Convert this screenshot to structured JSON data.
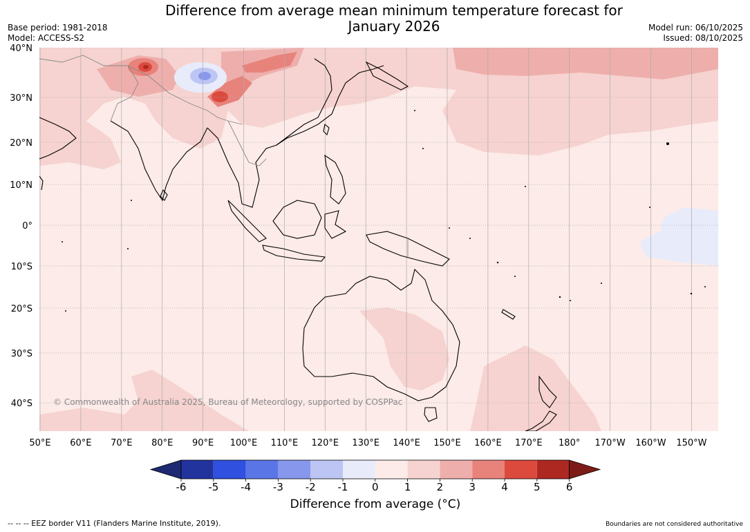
{
  "header": {
    "title_line1": "Difference from average mean minimum temperature forecast for",
    "title_line2": "January 2026",
    "base_period": "Base period: 1981-2018",
    "model": "Model: ACCESS-S2",
    "model_run": "Model run: 06/10/2025",
    "issued": "Issued: 08/10/2025"
  },
  "map": {
    "lat_labels": [
      "40°N",
      "30°N",
      "20°N",
      "10°N",
      "0°",
      "10°S",
      "20°S",
      "30°S",
      "40°S"
    ],
    "lon_labels": [
      "50°E",
      "60°E",
      "70°E",
      "80°E",
      "90°E",
      "100°E",
      "110°E",
      "120°E",
      "130°E",
      "140°E",
      "150°E",
      "160°E",
      "170°E",
      "180°",
      "170°W",
      "160°W",
      "150°W"
    ],
    "copyright": "© Commonwealth of Australia 2025, Bureau of Meteorology, supported by COSPPac"
  },
  "colorbar": {
    "ticks": [
      "-6",
      "-5",
      "-4",
      "-3",
      "-2",
      "-1",
      "0",
      "1",
      "2",
      "3",
      "4",
      "5",
      "6"
    ],
    "colors": [
      "#23339e",
      "#3050e0",
      "#5a76e6",
      "#8798ec",
      "#bdc5f4",
      "#e8ebfa",
      "#fcebe8",
      "#f6d3d0",
      "#eeafac",
      "#e8837c",
      "#dc4a3e",
      "#ae2822"
    ],
    "low_color": "#1d2a72",
    "high_color": "#7d1c16",
    "label": "Difference from average (°C)"
  },
  "footer": {
    "eez": "--  --  -- EEZ border V11 (Flanders Marine Institute, 2019).",
    "boundaries": "Boundaries are not considered authoritative"
  }
}
